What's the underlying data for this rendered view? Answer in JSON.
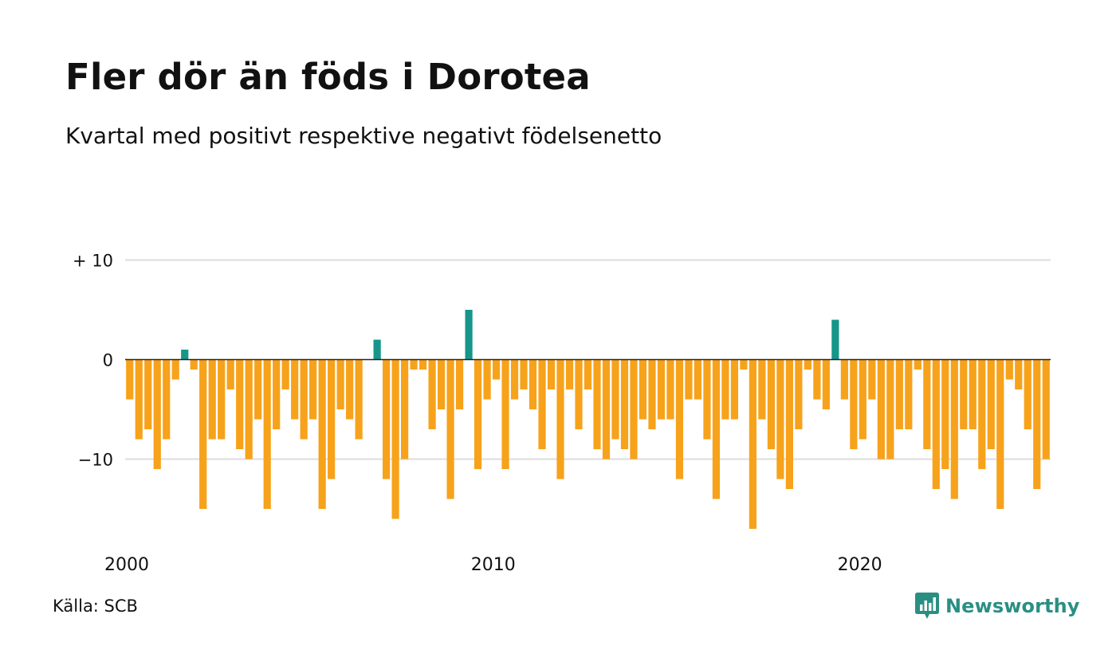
{
  "title": "Fler dör än föds i Dorotea",
  "subtitle": "Kvartal med positivt respektive negativt födelsenetto",
  "source": "Källa: SCB",
  "brand": "Newsworthy",
  "colors": {
    "positive": "#16968a",
    "negative": "#f7a21b",
    "grid": "#dddddd",
    "zero": "#222222",
    "brand": "#2a8f83"
  },
  "chart_data": {
    "type": "bar",
    "title": "Fler dör än föds i Dorotea",
    "subtitle": "Kvartal med positivt respektive negativt födelsenetto",
    "xlabel": "",
    "ylabel": "",
    "ylim": [
      -18,
      10
    ],
    "grid": true,
    "y_ticks": [
      10,
      0,
      -10
    ],
    "y_tick_labels": [
      "+ 10",
      "0",
      "−10"
    ],
    "x_tick_labels": [
      {
        "label": "2000",
        "index": 0
      },
      {
        "label": "2010",
        "index": 40
      },
      {
        "label": "2020",
        "index": 80
      }
    ],
    "start": "2000 Q1",
    "frequency": "quarter",
    "values": [
      -4,
      -8,
      -7,
      -11,
      -8,
      -2,
      1,
      -1,
      -15,
      -8,
      -8,
      -3,
      -9,
      -10,
      -6,
      -15,
      -7,
      -3,
      -6,
      -8,
      -6,
      -15,
      -12,
      -5,
      -6,
      -8,
      0,
      2,
      -12,
      -16,
      -10,
      -1,
      -1,
      -7,
      -5,
      -14,
      -5,
      5,
      -11,
      -4,
      -2,
      -11,
      -4,
      -3,
      -5,
      -9,
      -3,
      -12,
      -3,
      -7,
      -3,
      -9,
      -10,
      -8,
      -9,
      -10,
      -6,
      -7,
      -6,
      -6,
      -12,
      -4,
      -4,
      -8,
      -14,
      -6,
      -6,
      -1,
      -17,
      -6,
      -9,
      -12,
      -13,
      -7,
      -1,
      -4,
      -5,
      4,
      -4,
      -9,
      -8,
      -4,
      -10,
      -10,
      -7,
      -7,
      -1,
      -9,
      -13,
      -11,
      -14,
      -7,
      -7,
      -11,
      -9,
      -15,
      -2,
      -3,
      -7,
      -13,
      -10
    ]
  }
}
